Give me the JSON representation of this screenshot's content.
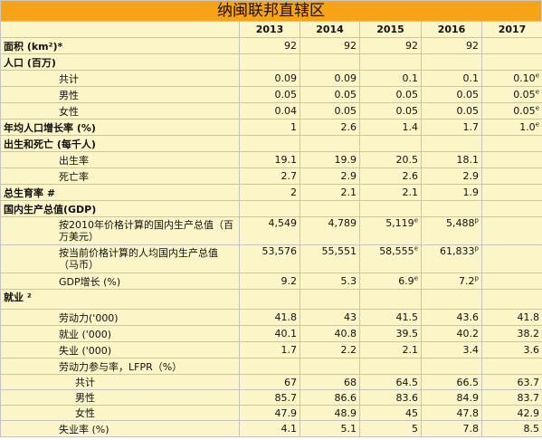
{
  "title": "纳闽联邦直辖区",
  "years": [
    "2013",
    "2014",
    "2015",
    "2016",
    "2017"
  ],
  "rows": [
    {
      "label": "面积 (km²)*",
      "type": "section",
      "values": [
        "92",
        "92",
        "92",
        "92",
        ""
      ],
      "sup": [
        "",
        "",
        "",
        "",
        ""
      ]
    },
    {
      "label": "人口 (百万)",
      "type": "header",
      "values": [
        "",
        "",
        "",
        "",
        ""
      ],
      "sup": [
        "",
        "",
        "",
        "",
        ""
      ]
    },
    {
      "label": "共计",
      "type": "sub",
      "values": [
        "0.09",
        "0.09",
        "0.1",
        "0.1",
        "0.10"
      ],
      "sup": [
        "",
        "",
        "",
        "",
        "e"
      ]
    },
    {
      "label": "男性",
      "type": "sub",
      "values": [
        "0.05",
        "0.05",
        "0.05",
        "0.05",
        "0.05"
      ],
      "sup": [
        "",
        "",
        "",
        "",
        "e"
      ]
    },
    {
      "label": "女性",
      "type": "sub",
      "values": [
        "0.04",
        "0.05",
        "0.05",
        "0.05",
        "0.05"
      ],
      "sup": [
        "",
        "",
        "",
        "",
        "e"
      ]
    },
    {
      "label": "年均人口增长率 (%)",
      "type": "section",
      "values": [
        "1",
        "2.6",
        "1.4",
        "1.7",
        "1.0"
      ],
      "sup": [
        "",
        "",
        "",
        "",
        "e"
      ]
    },
    {
      "label": "出生和死亡 (每千人)",
      "type": "header",
      "values": [
        "",
        "",
        "",
        "",
        ""
      ],
      "sup": [
        "",
        "",
        "",
        "",
        ""
      ]
    },
    {
      "label": "出生率",
      "type": "sub",
      "values": [
        "19.1",
        "19.9",
        "20.5",
        "18.1",
        ""
      ],
      "sup": [
        "",
        "",
        "",
        "",
        ""
      ]
    },
    {
      "label": "死亡率",
      "type": "sub",
      "values": [
        "2.7",
        "2.9",
        "2.6",
        "2.9",
        ""
      ],
      "sup": [
        "",
        "",
        "",
        "",
        ""
      ]
    },
    {
      "label": "总生育率 #",
      "type": "section",
      "values": [
        "2",
        "2.1",
        "2.1",
        "1.9",
        ""
      ],
      "sup": [
        "",
        "",
        "",
        "",
        ""
      ]
    },
    {
      "label": "国内生产总值(GDP)",
      "type": "header",
      "values": [
        "",
        "",
        "",
        "",
        ""
      ],
      "sup": [
        "",
        "",
        "",
        "",
        ""
      ]
    },
    {
      "label": "按2010年价格计算的国内生产总值（百万美元）",
      "type": "sub2",
      "values": [
        "4,549",
        "4,789",
        "5,119",
        "5,488",
        ""
      ],
      "sup": [
        "",
        "",
        "e",
        "p",
        ""
      ]
    },
    {
      "label": "按当前价格计算的人均国内生产总值（马币）",
      "type": "sub2",
      "values": [
        "53,576",
        "55,551",
        "58,555",
        "61,833",
        ""
      ],
      "sup": [
        "",
        "",
        "e",
        "p",
        ""
      ]
    },
    {
      "label": "GDP增长 (%)",
      "type": "sub",
      "values": [
        "9.2",
        "5.3",
        "6.9",
        "7.2",
        ""
      ],
      "sup": [
        "",
        "",
        "e",
        "p",
        ""
      ]
    },
    {
      "label": "就业 ²",
      "type": "header-tall",
      "values": [
        "",
        "",
        "",
        "",
        ""
      ],
      "sup": [
        "",
        "",
        "",
        "",
        ""
      ]
    },
    {
      "label": "劳动力('000)",
      "type": "sub",
      "values": [
        "41.8",
        "43",
        "41.5",
        "43.6",
        "41.8"
      ],
      "sup": [
        "",
        "",
        "",
        "",
        ""
      ]
    },
    {
      "label": "就业 ('000)",
      "type": "sub",
      "values": [
        "40.1",
        "40.8",
        "39.5",
        "40.2",
        "38.2"
      ],
      "sup": [
        "",
        "",
        "",
        "",
        ""
      ]
    },
    {
      "label": "失业 ('000)",
      "type": "sub",
      "values": [
        "1.7",
        "2.2",
        "2.1",
        "3.4",
        "3.6"
      ],
      "sup": [
        "",
        "",
        "",
        "",
        ""
      ]
    },
    {
      "label": "劳动力参与率，LFPR（%）",
      "type": "sub",
      "values": [
        "",
        "",
        "",
        "",
        ""
      ],
      "sup": [
        "",
        "",
        "",
        "",
        ""
      ]
    },
    {
      "label": "共计",
      "type": "subsub",
      "values": [
        "67",
        "68",
        "64.5",
        "66.5",
        "63.7"
      ],
      "sup": [
        "",
        "",
        "",
        "",
        ""
      ]
    },
    {
      "label": "男性",
      "type": "subsub",
      "values": [
        "85.7",
        "86.6",
        "83.6",
        "84.9",
        "83.7"
      ],
      "sup": [
        "",
        "",
        "",
        "",
        ""
      ]
    },
    {
      "label": "女性",
      "type": "subsub",
      "values": [
        "47.9",
        "48.9",
        "45",
        "47.8",
        "42.9"
      ],
      "sup": [
        "",
        "",
        "",
        "",
        ""
      ]
    },
    {
      "label": "失业率 (%)",
      "type": "sub",
      "values": [
        "4.1",
        "5.1",
        "5",
        "7.8",
        "8.5"
      ],
      "sup": [
        "",
        "",
        "",
        "",
        ""
      ]
    }
  ]
}
